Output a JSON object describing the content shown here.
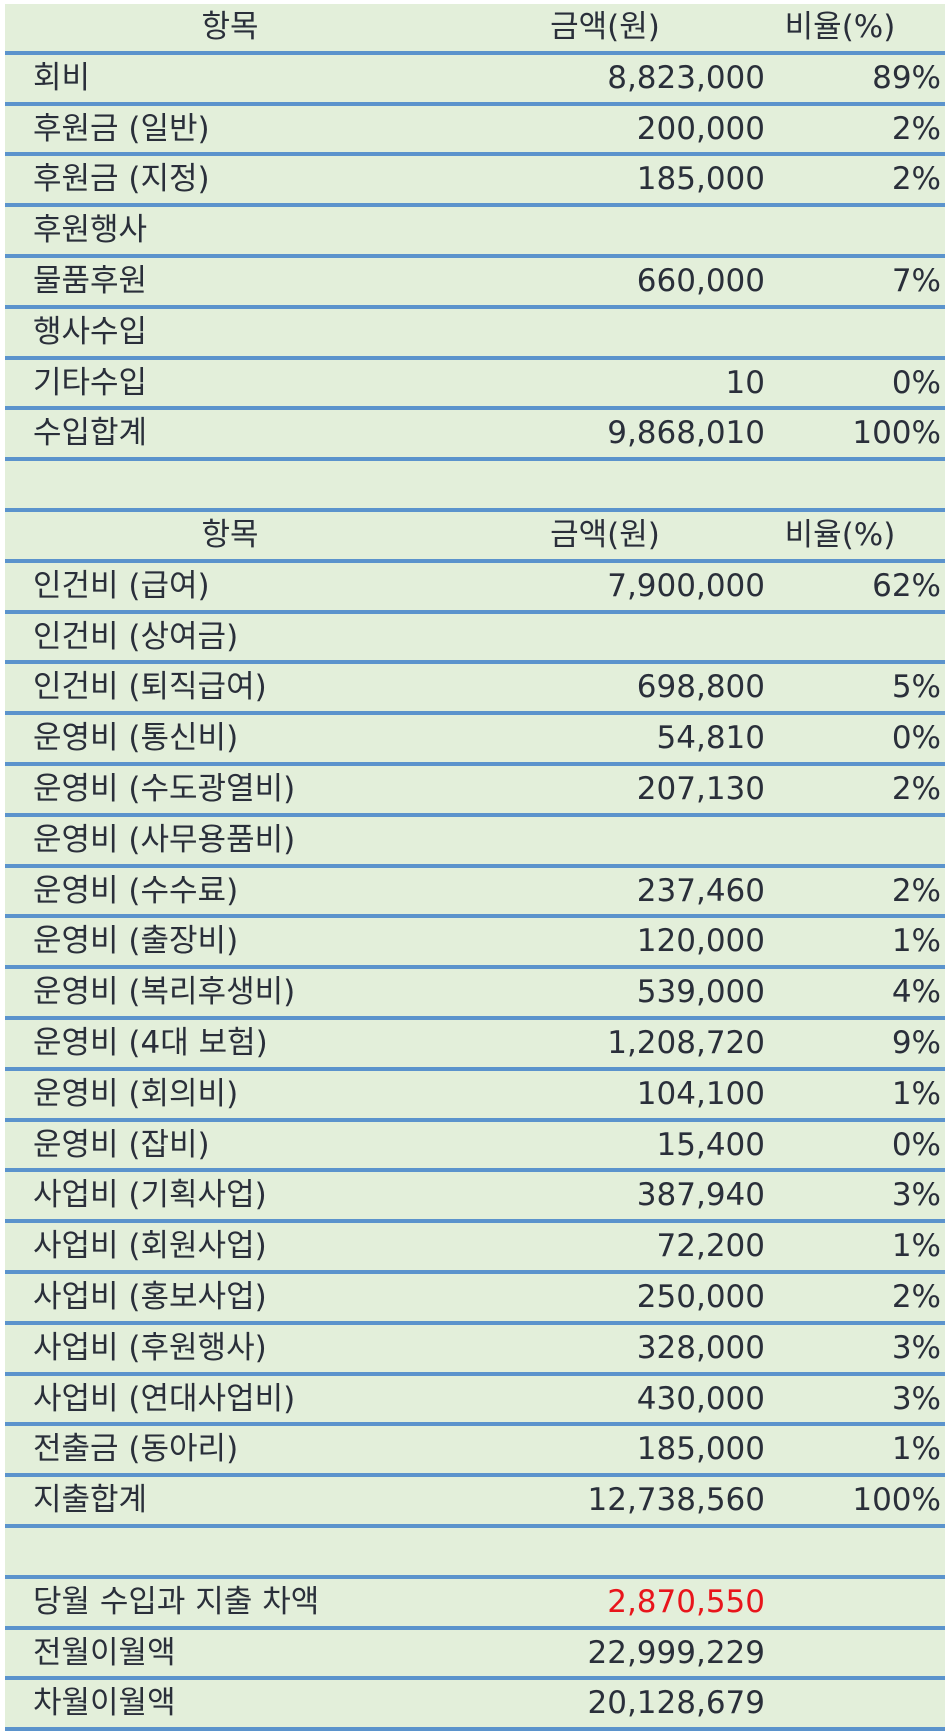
{
  "income_table": {
    "headers": {
      "item": "항목",
      "amount": "금액(원)",
      "ratio": "비율(%)"
    },
    "rows": [
      {
        "item": "회비",
        "amount": "8,823,000",
        "ratio": "89%"
      },
      {
        "item": "후원금 (일반)",
        "amount": "200,000",
        "ratio": "2%"
      },
      {
        "item": "후원금 (지정)",
        "amount": "185,000",
        "ratio": "2%"
      },
      {
        "item": "후원행사",
        "amount": "",
        "ratio": ""
      },
      {
        "item": "물품후원",
        "amount": "660,000",
        "ratio": "7%"
      },
      {
        "item": "행사수입",
        "amount": "",
        "ratio": ""
      },
      {
        "item": "기타수입",
        "amount": "10",
        "ratio": "0%"
      },
      {
        "item": "수입합계",
        "amount": "9,868,010",
        "ratio": "100%"
      }
    ]
  },
  "expense_table": {
    "headers": {
      "item": "항목",
      "amount": "금액(원)",
      "ratio": "비율(%)"
    },
    "rows": [
      {
        "item": "인건비 (급여)",
        "amount": "7,900,000",
        "ratio": "62%"
      },
      {
        "item": "인건비 (상여금)",
        "amount": "",
        "ratio": ""
      },
      {
        "item": "인건비 (퇴직급여)",
        "amount": "698,800",
        "ratio": "5%"
      },
      {
        "item": "운영비 (통신비)",
        "amount": "54,810",
        "ratio": "0%"
      },
      {
        "item": "운영비 (수도광열비)",
        "amount": "207,130",
        "ratio": "2%"
      },
      {
        "item": "운영비 (사무용품비)",
        "amount": "",
        "ratio": ""
      },
      {
        "item": "운영비 (수수료)",
        "amount": "237,460",
        "ratio": "2%"
      },
      {
        "item": "운영비 (출장비)",
        "amount": "120,000",
        "ratio": "1%"
      },
      {
        "item": "운영비 (복리후생비)",
        "amount": "539,000",
        "ratio": "4%"
      },
      {
        "item": "운영비 (4대 보험)",
        "amount": "1,208,720",
        "ratio": "9%"
      },
      {
        "item": "운영비 (회의비)",
        "amount": "104,100",
        "ratio": "1%"
      },
      {
        "item": "운영비 (잡비)",
        "amount": "15,400",
        "ratio": "0%"
      },
      {
        "item": "사업비 (기획사업)",
        "amount": "387,940",
        "ratio": "3%"
      },
      {
        "item": "사업비 (회원사업)",
        "amount": "72,200",
        "ratio": "1%"
      },
      {
        "item": "사업비 (홍보사업)",
        "amount": "250,000",
        "ratio": "2%"
      },
      {
        "item": "사업비 (후원행사)",
        "amount": "328,000",
        "ratio": "3%"
      },
      {
        "item": "사업비 (연대사업비)",
        "amount": "430,000",
        "ratio": "3%"
      },
      {
        "item": "전출금 (동아리)",
        "amount": "185,000",
        "ratio": "1%"
      },
      {
        "item": "지출합계",
        "amount": "12,738,560",
        "ratio": "100%"
      }
    ]
  },
  "balance_table": {
    "rows": [
      {
        "item": "당월 수입과 지출 차액",
        "amount": "2,870,550",
        "highlight": "#e8151b"
      },
      {
        "item": "전월이월액",
        "amount": "22,999,229"
      },
      {
        "item": "차월이월액",
        "amount": "20,128,679"
      }
    ]
  },
  "colors": {
    "row_bg": "#e3efda",
    "border": "#5b93cc",
    "text": "#2a2f3a",
    "negative": "#e8151b"
  }
}
